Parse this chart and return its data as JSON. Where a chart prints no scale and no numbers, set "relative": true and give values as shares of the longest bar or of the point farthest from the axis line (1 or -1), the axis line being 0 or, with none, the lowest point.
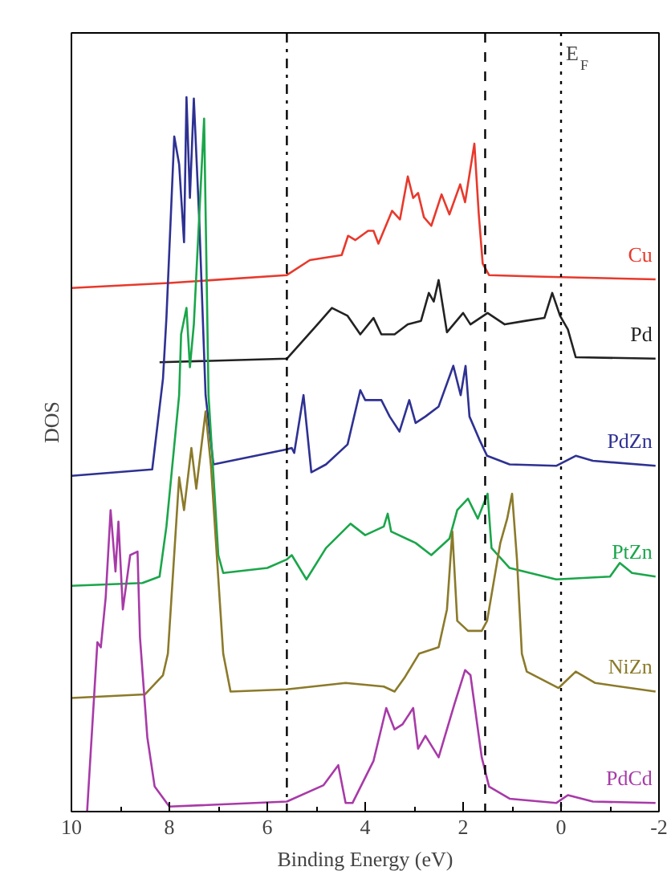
{
  "chart_data": {
    "type": "line",
    "relative": true,
    "xlabel": "Binding Energy (eV)",
    "ylabel": "DOS",
    "xlim": [
      10,
      -2
    ],
    "xticks": [
      10,
      8,
      6,
      4,
      2,
      0,
      {
        "value": -2,
        "label": "-2"
      }
    ],
    "tick_labels": "x",
    "grid": false,
    "legend": false,
    "marker": "none",
    "line_style": "solid",
    "ref_lines": [
      {
        "axis": "x",
        "value": 5.6,
        "line_style": "dashdot"
      },
      {
        "axis": "x",
        "value": 1.55,
        "line_style": "dashed"
      },
      {
        "axis": "x",
        "value": 0,
        "line_style": "dotted",
        "label": "E$_{F}$"
      }
    ],
    "series": [
      {
        "name": "Cu",
        "color": "#e8392c",
        "x": [
          10,
          8,
          5.6,
          5.13,
          4.48,
          4.35,
          4.2,
          3.94,
          3.83,
          3.73,
          3.45,
          3.29,
          3.13,
          3.02,
          2.92,
          2.8,
          2.65,
          2.44,
          2.28,
          2.06,
          1.96,
          1.77,
          1.68,
          1.6,
          1.47,
          0.5,
          -1.93
        ],
        "values": [
          0.733,
          0.74,
          0.751,
          0.772,
          0.779,
          0.806,
          0.8,
          0.813,
          0.813,
          0.795,
          0.841,
          0.829,
          0.889,
          0.859,
          0.866,
          0.832,
          0.82,
          0.864,
          0.836,
          0.878,
          0.853,
          0.935,
          0.836,
          0.767,
          0.751,
          0.749,
          0.745
        ]
      },
      {
        "name": "Pd",
        "color": "#222222",
        "x": [
          8.2,
          5.6,
          5.0,
          4.68,
          4.36,
          4.1,
          3.83,
          3.67,
          3.4,
          3.13,
          2.86,
          2.7,
          2.6,
          2.5,
          2.33,
          2.0,
          1.85,
          1.5,
          1.15,
          0.72,
          0.34,
          0.18,
          0.02,
          -0.14,
          -0.3,
          -1.93
        ],
        "values": [
          0.629,
          0.634,
          0.68,
          0.705,
          0.694,
          0.668,
          0.691,
          0.668,
          0.668,
          0.682,
          0.687,
          0.726,
          0.714,
          0.744,
          0.671,
          0.698,
          0.682,
          0.698,
          0.682,
          0.687,
          0.691,
          0.726,
          0.694,
          0.675,
          0.636,
          0.634
        ]
      },
      {
        "name": "PdZn",
        "color": "#2e3192",
        "x": [
          10,
          8.35,
          8.13,
          8.06,
          7.9,
          7.8,
          7.7,
          7.65,
          7.58,
          7.5,
          7.39,
          7.26,
          7.1,
          5.6,
          5.5,
          5.45,
          5.26,
          5.1,
          4.8,
          4.36,
          4.1,
          4.0,
          3.67,
          3.5,
          3.3,
          3.1,
          2.97,
          2.77,
          2.5,
          2.2,
          2.05,
          1.95,
          1.87,
          1.67,
          1.51,
          1.05,
          0.1,
          -0.3,
          -0.65,
          -1.93
        ],
        "values": [
          0.47,
          0.479,
          0.606,
          0.691,
          0.945,
          0.906,
          0.797,
          1.0,
          0.859,
          0.998,
          0.829,
          0.583,
          0.486,
          0.507,
          0.509,
          0.502,
          0.583,
          0.475,
          0.486,
          0.514,
          0.59,
          0.576,
          0.576,
          0.553,
          0.532,
          0.576,
          0.544,
          0.553,
          0.567,
          0.624,
          0.583,
          0.624,
          0.553,
          0.521,
          0.498,
          0.486,
          0.484,
          0.498,
          0.491,
          0.484
        ]
      },
      {
        "name": "PtZn",
        "color": "#1aa64a",
        "x": [
          10,
          8.55,
          8.2,
          8.06,
          7.8,
          7.76,
          7.65,
          7.58,
          7.5,
          7.29,
          7.2,
          7.0,
          6.9,
          6.0,
          5.6,
          5.5,
          5.2,
          4.8,
          4.3,
          4.0,
          3.62,
          3.54,
          3.47,
          2.97,
          2.65,
          2.28,
          2.12,
          1.9,
          1.7,
          1.5,
          1.42,
          1.05,
          0.1,
          -1.0,
          -1.2,
          -1.45,
          -1.93
        ],
        "values": [
          0.316,
          0.32,
          0.329,
          0.399,
          0.583,
          0.668,
          0.705,
          0.622,
          0.682,
          0.97,
          0.583,
          0.359,
          0.334,
          0.341,
          0.353,
          0.359,
          0.325,
          0.369,
          0.403,
          0.387,
          0.399,
          0.417,
          0.392,
          0.376,
          0.359,
          0.382,
          0.422,
          0.438,
          0.41,
          0.445,
          0.369,
          0.341,
          0.325,
          0.329,
          0.348,
          0.334,
          0.329
        ]
      },
      {
        "name": "NiZn",
        "color": "#8b7a2a",
        "x": [
          10,
          8.5,
          8.13,
          8.03,
          7.8,
          7.7,
          7.55,
          7.45,
          7.35,
          7.26,
          7.15,
          6.9,
          6.75,
          5.6,
          4.4,
          3.62,
          3.4,
          3.2,
          2.9,
          2.5,
          2.33,
          2.22,
          2.12,
          1.9,
          1.62,
          1.51,
          1.24,
          1.1,
          1.0,
          0.9,
          0.8,
          0.7,
          0.05,
          -0.3,
          -0.7,
          -1.93
        ],
        "values": [
          0.159,
          0.164,
          0.191,
          0.221,
          0.468,
          0.422,
          0.509,
          0.452,
          0.509,
          0.56,
          0.484,
          0.221,
          0.168,
          0.171,
          0.18,
          0.175,
          0.168,
          0.187,
          0.221,
          0.23,
          0.283,
          0.392,
          0.267,
          0.253,
          0.253,
          0.267,
          0.376,
          0.41,
          0.445,
          0.353,
          0.221,
          0.196,
          0.173,
          0.196,
          0.18,
          0.168
        ]
      },
      {
        "name": "PdCd",
        "color": "#a83aa8",
        "x": [
          9.68,
          9.47,
          9.4,
          9.3,
          9.2,
          9.1,
          9.04,
          8.95,
          8.8,
          8.65,
          8.6,
          8.45,
          8.3,
          8.0,
          5.6,
          4.85,
          4.55,
          4.4,
          4.26,
          3.83,
          3.57,
          3.4,
          3.24,
          3.02,
          2.92,
          2.77,
          2.5,
          2.18,
          1.96,
          1.85,
          1.62,
          1.47,
          1.05,
          0.1,
          -0.14,
          -0.65,
          -1.93
        ],
        "values": [
          0,
          0.237,
          0.23,
          0.3,
          0.422,
          0.336,
          0.406,
          0.283,
          0.359,
          0.364,
          0.244,
          0.104,
          0.035,
          0.007,
          0.014,
          0.037,
          0.065,
          0.012,
          0.012,
          0.071,
          0.145,
          0.115,
          0.122,
          0.145,
          0.088,
          0.106,
          0.076,
          0.15,
          0.198,
          0.191,
          0.076,
          0.035,
          0.018,
          0.012,
          0.023,
          0.014,
          0.012
        ]
      }
    ]
  }
}
